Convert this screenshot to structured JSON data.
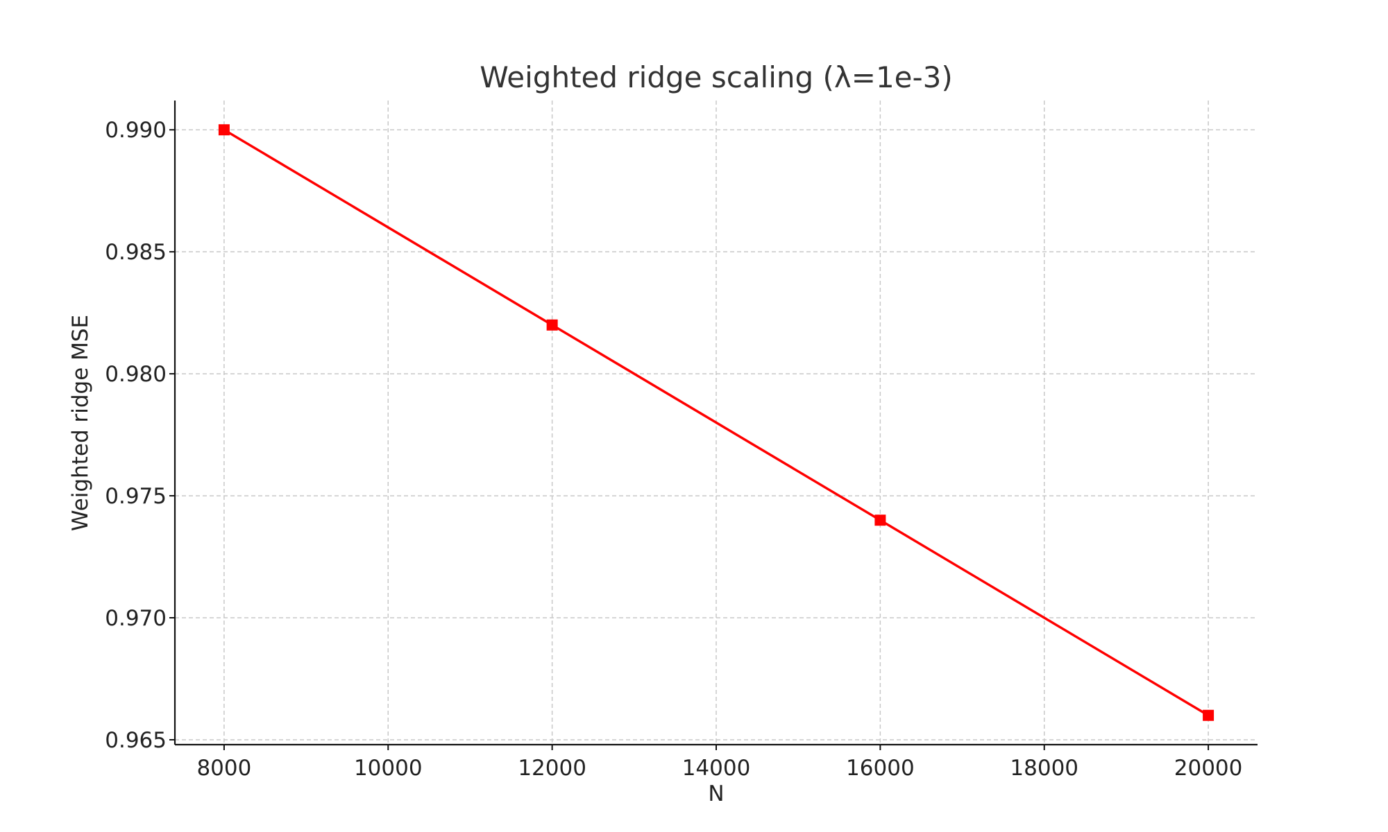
{
  "chart_data": {
    "type": "line",
    "title": "Weighted ridge scaling (λ=1e-3)",
    "xlabel": "N",
    "ylabel": "Weighted ridge MSE",
    "xlim": [
      7400,
      20600
    ],
    "ylim": [
      0.9648,
      0.9912
    ],
    "x_ticks": [
      8000,
      10000,
      12000,
      14000,
      16000,
      18000,
      20000
    ],
    "x_tick_labels": [
      "8000",
      "10000",
      "12000",
      "14000",
      "16000",
      "18000",
      "20000"
    ],
    "y_ticks": [
      0.965,
      0.97,
      0.975,
      0.98,
      0.985,
      0.99
    ],
    "y_tick_labels": [
      "0.965",
      "0.970",
      "0.975",
      "0.980",
      "0.985",
      "0.990"
    ],
    "grid": true,
    "series": [
      {
        "x": [
          8000,
          12000,
          16000,
          20000
        ],
        "y": [
          0.99,
          0.982,
          0.974,
          0.966
        ],
        "color": "#ff0000",
        "marker": "square"
      }
    ]
  }
}
